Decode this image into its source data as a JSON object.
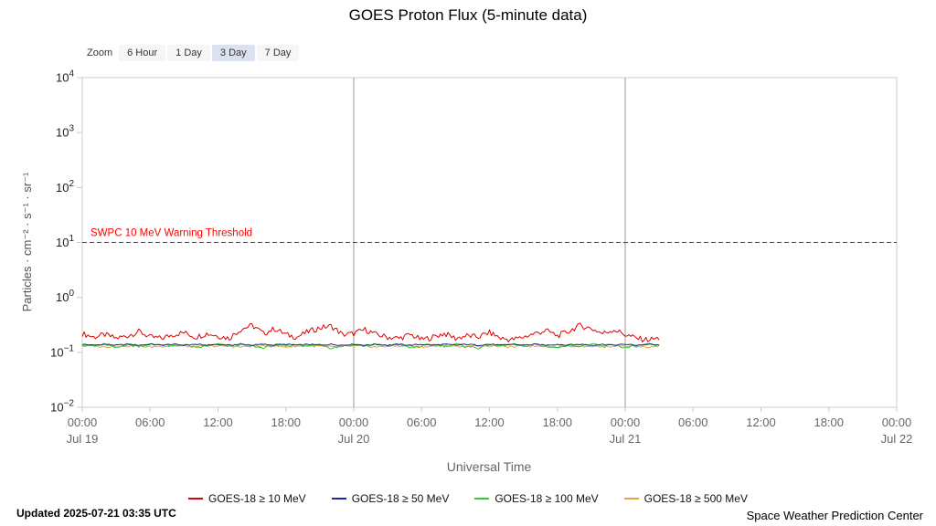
{
  "title": "GOES Proton Flux (5-minute data)",
  "zoom": {
    "label": "Zoom",
    "options": [
      "6 Hour",
      "1 Day",
      "3 Day",
      "7 Day"
    ],
    "selected": "3 Day"
  },
  "footer": {
    "updated": "Updated 2025-07-21 03:35 UTC",
    "source": "Space Weather Prediction Center"
  },
  "chart_data": {
    "type": "line",
    "title": "GOES Proton Flux (5-minute data)",
    "xlabel": "Universal Time",
    "ylabel": "Particles · cm⁻² · s⁻¹ · sr⁻¹",
    "y_scale": "log",
    "ylim": [
      0.01,
      10000
    ],
    "y_tick_exponents": [
      4,
      3,
      2,
      1,
      0,
      -1,
      -2
    ],
    "x_range_hours": [
      0,
      72
    ],
    "x_tick_interval_hours": 6,
    "x_ticks": [
      {
        "time": "00:00",
        "day": "Jul 19"
      },
      {
        "time": "06:00"
      },
      {
        "time": "12:00"
      },
      {
        "time": "18:00"
      },
      {
        "time": "00:00",
        "day": "Jul 20"
      },
      {
        "time": "06:00"
      },
      {
        "time": "12:00"
      },
      {
        "time": "18:00"
      },
      {
        "time": "00:00",
        "day": "Jul 21"
      },
      {
        "time": "06:00"
      },
      {
        "time": "12:00"
      },
      {
        "time": "18:00"
      },
      {
        "time": "00:00",
        "day": "Jul 22"
      }
    ],
    "day_boundary_hours": [
      24,
      48
    ],
    "threshold": {
      "label": "SWPC 10 MeV Warning Threshold",
      "value": 10,
      "color": "#ff0000",
      "style": "dashed"
    },
    "sample_interval_hours": 1,
    "data_start": "Jul 19 00:00 UTC",
    "data_end": "Jul 21 03:35 UTC",
    "series": [
      {
        "name": "GOES-18 ≥ 10 MeV",
        "color": "#e00000",
        "values": [
          0.22,
          0.19,
          0.21,
          0.18,
          0.2,
          0.24,
          0.19,
          0.18,
          0.21,
          0.23,
          0.19,
          0.22,
          0.2,
          0.18,
          0.26,
          0.31,
          0.22,
          0.27,
          0.21,
          0.19,
          0.24,
          0.28,
          0.3,
          0.21,
          0.22,
          0.26,
          0.21,
          0.19,
          0.18,
          0.21,
          0.17,
          0.19,
          0.22,
          0.18,
          0.2,
          0.19,
          0.23,
          0.18,
          0.17,
          0.19,
          0.22,
          0.25,
          0.2,
          0.24,
          0.31,
          0.27,
          0.22,
          0.26,
          0.21,
          0.18,
          0.17,
          0.18
        ]
      },
      {
        "name": "GOES-18 ≥ 50 MeV",
        "color": "#2222aa",
        "values": [
          0.14,
          0.135,
          0.14,
          0.135,
          0.14,
          0.135,
          0.14,
          0.135,
          0.14,
          0.135,
          0.14,
          0.135,
          0.14,
          0.135,
          0.14,
          0.135,
          0.14,
          0.135,
          0.14,
          0.135,
          0.14,
          0.135,
          0.14,
          0.135,
          0.14,
          0.135,
          0.14,
          0.135,
          0.14,
          0.135,
          0.14,
          0.135,
          0.14,
          0.135,
          0.14,
          0.135,
          0.14,
          0.135,
          0.14,
          0.135,
          0.14,
          0.135,
          0.14,
          0.135,
          0.14,
          0.135,
          0.14,
          0.135,
          0.14,
          0.135,
          0.14,
          0.135
        ]
      },
      {
        "name": "GOES-18 ≥ 100 MeV",
        "color": "#33cc33",
        "values": [
          0.14,
          0.13,
          0.14,
          0.12,
          0.14,
          0.13,
          0.14,
          0.14,
          0.13,
          0.14,
          0.12,
          0.13,
          0.14,
          0.13,
          0.14,
          0.13,
          0.12,
          0.14,
          0.13,
          0.14,
          0.13,
          0.14,
          0.12,
          0.13,
          0.14,
          0.13,
          0.14,
          0.13,
          0.14,
          0.12,
          0.13,
          0.14,
          0.13,
          0.14,
          0.13,
          0.12,
          0.14,
          0.13,
          0.14,
          0.13,
          0.14,
          0.13,
          0.12,
          0.14,
          0.13,
          0.14,
          0.13,
          0.14,
          0.12,
          0.13,
          0.14,
          0.13
        ]
      },
      {
        "name": "GOES-18 ≥ 500 MeV",
        "color": "#e8a33c",
        "values": [
          0.13,
          0.13,
          0.125,
          0.13,
          0.13,
          0.13,
          0.125,
          0.13,
          0.13,
          0.13,
          0.125,
          0.13,
          0.13,
          0.13,
          0.125,
          0.13,
          0.13,
          0.13,
          0.125,
          0.13,
          0.13,
          0.13,
          0.125,
          0.13,
          0.13,
          0.13,
          0.125,
          0.13,
          0.13,
          0.13,
          0.125,
          0.13,
          0.13,
          0.13,
          0.125,
          0.13,
          0.13,
          0.13,
          0.125,
          0.13,
          0.13,
          0.13,
          0.125,
          0.13,
          0.13,
          0.13,
          0.125,
          0.13,
          0.13,
          0.13,
          0.125,
          0.13
        ]
      }
    ],
    "legend_position": "bottom"
  }
}
